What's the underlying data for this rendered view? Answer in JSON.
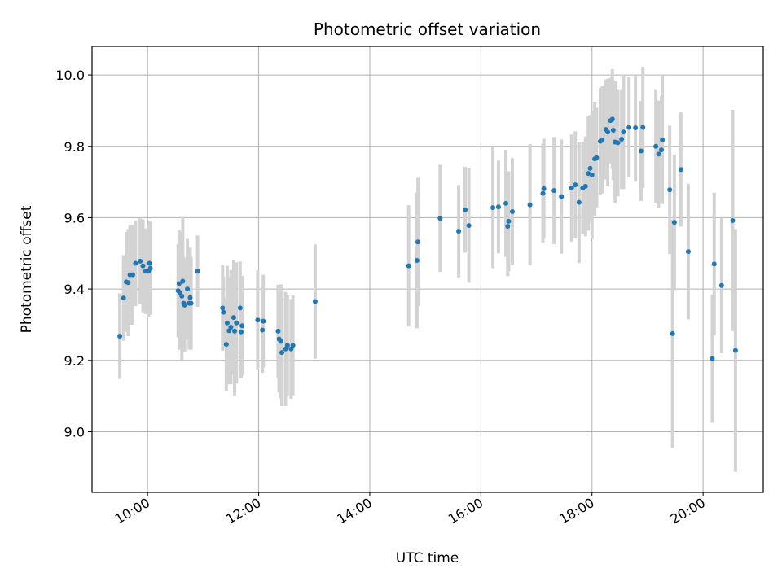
{
  "chart_data": {
    "type": "scatter",
    "title": "Photometric offset variation",
    "xlabel": "UTC time",
    "ylabel": "Photometric offset",
    "xlim": [
      "09:00",
      "21:05"
    ],
    "ylim": [
      8.83,
      10.08
    ],
    "x_ticks": [
      "10:00",
      "12:00",
      "14:00",
      "16:00",
      "18:00",
      "20:00"
    ],
    "y_ticks": [
      "9.0",
      "9.2",
      "9.4",
      "9.6",
      "9.8",
      "10.0"
    ],
    "grid": true,
    "errorbar_color": "#d3d3d3",
    "marker_color": "#1f77b4",
    "series": [
      {
        "x": [
          "09:30",
          "09:34",
          "09:37",
          "09:39",
          "09:41",
          "09:44",
          "09:47",
          "09:52",
          "09:55",
          "09:58",
          "10:01",
          "10:02",
          "10:03",
          "10:33",
          "10:34",
          "10:35",
          "10:37",
          "10:38",
          "10:39",
          "10:40",
          "10:43",
          "10:45",
          "10:46",
          "10:47",
          "10:54",
          "11:21",
          "11:22",
          "11:25",
          "11:26",
          "11:28",
          "11:30",
          "11:33",
          "11:34",
          "11:36",
          "11:40",
          "11:41",
          "11:42",
          "11:59",
          "12:04",
          "12:05",
          "12:21",
          "12:22",
          "12:24",
          "12:25",
          "12:29",
          "12:31",
          "12:35",
          "12:37",
          "13:01",
          "14:42",
          "14:51",
          "14:52",
          "15:16",
          "15:36",
          "15:43",
          "15:47",
          "16:13",
          "16:19",
          "16:27",
          "16:29",
          "16:30",
          "16:34",
          "16:53",
          "17:07",
          "17:08",
          "17:19",
          "17:27",
          "17:38",
          "17:42",
          "17:46",
          "17:50",
          "17:53",
          "17:56",
          "17:58",
          "18:00",
          "18:03",
          "18:05",
          "18:09",
          "18:11",
          "18:15",
          "18:17",
          "18:20",
          "18:22",
          "18:23",
          "18:25",
          "18:28",
          "18:32",
          "18:34",
          "18:40",
          "18:47",
          "18:53",
          "18:55",
          "19:09",
          "19:12",
          "19:15",
          "19:16",
          "19:24",
          "19:27",
          "19:29",
          "19:36",
          "19:44",
          "20:10",
          "20:12",
          "20:20",
          "20:32",
          "20:35"
        ],
        "y": [
          9.268,
          9.375,
          9.42,
          9.418,
          9.44,
          9.44,
          9.472,
          9.478,
          9.465,
          9.45,
          9.45,
          9.472,
          9.458,
          9.395,
          9.415,
          9.39,
          9.38,
          9.422,
          9.36,
          9.355,
          9.4,
          9.36,
          9.376,
          9.36,
          9.45,
          9.347,
          9.335,
          9.245,
          9.305,
          9.283,
          9.293,
          9.32,
          9.282,
          9.305,
          9.347,
          9.28,
          9.297,
          9.313,
          9.285,
          9.31,
          9.282,
          9.26,
          9.253,
          9.222,
          9.232,
          9.242,
          9.232,
          9.242,
          9.365,
          9.465,
          9.48,
          9.532,
          9.598,
          9.562,
          9.622,
          9.578,
          9.628,
          9.63,
          9.64,
          9.576,
          9.59,
          9.617,
          9.636,
          9.668,
          9.681,
          9.676,
          9.659,
          9.683,
          9.692,
          9.643,
          9.683,
          9.688,
          9.724,
          9.738,
          9.72,
          9.765,
          9.768,
          9.814,
          9.818,
          9.847,
          9.84,
          9.872,
          9.876,
          9.845,
          9.812,
          9.81,
          9.82,
          9.84,
          9.853,
          9.852,
          9.787,
          9.853,
          9.8,
          9.778,
          9.79,
          9.818,
          9.678,
          9.275,
          9.587,
          9.735,
          9.505,
          9.205,
          9.47,
          9.41,
          9.592,
          9.228
        ],
        "err": [
          0.12,
          0.12,
          0.14,
          0.15,
          0.14,
          0.14,
          0.12,
          0.12,
          0.13,
          0.12,
          0.13,
          0.12,
          0.13,
          0.13,
          0.15,
          0.16,
          0.18,
          0.18,
          0.13,
          0.13,
          0.14,
          0.13,
          0.14,
          0.13,
          0.1,
          0.12,
          0.1,
          0.13,
          0.16,
          0.15,
          0.16,
          0.16,
          0.18,
          0.17,
          0.13,
          0.13,
          0.14,
          0.14,
          0.12,
          0.13,
          0.13,
          0.15,
          0.16,
          0.15,
          0.16,
          0.14,
          0.14,
          0.14,
          0.16,
          0.17,
          0.19,
          0.18,
          0.15,
          0.13,
          0.12,
          0.16,
          0.17,
          0.13,
          0.15,
          0.14,
          0.14,
          0.15,
          0.17,
          0.14,
          0.14,
          0.15,
          0.16,
          0.15,
          0.15,
          0.17,
          0.13,
          0.14,
          0.16,
          0.15,
          0.18,
          0.16,
          0.14,
          0.15,
          0.15,
          0.14,
          0.15,
          0.12,
          0.14,
          0.14,
          0.17,
          0.15,
          0.14,
          0.16,
          0.14,
          0.15,
          0.14,
          0.17,
          0.16,
          0.15,
          0.15,
          0.18,
          0.18,
          0.32,
          0.19,
          0.16,
          0.19,
          0.18,
          0.2,
          0.19,
          0.31,
          0.34
        ]
      }
    ]
  }
}
